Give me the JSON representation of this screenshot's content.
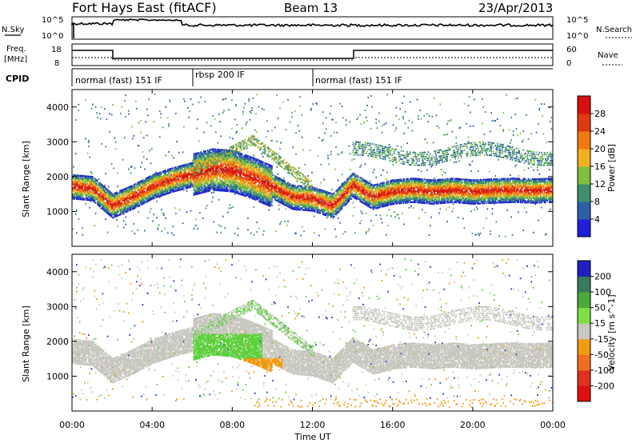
{
  "header": {
    "title": "Fort Hays East (fitACF)",
    "beam": "Beam 13",
    "date": "23/Apr/2013"
  },
  "noise_panel": {
    "left_label": "N.Sky",
    "left_ticks": [
      "10^5",
      "10^0"
    ],
    "right_label": "N.Search",
    "right_ticks": [
      "10^5",
      "10^0"
    ]
  },
  "freq_panel": {
    "left_label_line1": "Freq.",
    "left_label_line2": "[MHz]",
    "left_ticks": [
      "18",
      "8"
    ],
    "right_label": "Nave",
    "right_ticks": [
      "60",
      "0"
    ]
  },
  "cpid": {
    "label": "CPID",
    "segments": [
      {
        "label": "normal (fast) 151 IF",
        "start_hr": 0,
        "end_hr": 6
      },
      {
        "label": "rbsp 200 IF",
        "start_hr": 6,
        "end_hr": 12
      },
      {
        "label": "normal (fast) 151 IF",
        "start_hr": 12,
        "end_hr": 24
      }
    ]
  },
  "chart_data": [
    {
      "type": "heatmap",
      "name": "power",
      "ylabel": "Slant Range [km]",
      "yticks": [
        "1000",
        "2000",
        "3000",
        "4000"
      ],
      "ylim": [
        0,
        4500
      ],
      "xlim": [
        0,
        24
      ],
      "colorbar_label": "Power [dB]",
      "colorbar_ticks": [
        "4",
        "8",
        "12",
        "16",
        "20",
        "24",
        "28"
      ],
      "colorbar_colors": [
        "#1f1fd8",
        "#2f5fa8",
        "#3f8f6f",
        "#7fbf3f",
        "#f0b020",
        "#f07a10",
        "#e03a10",
        "#d81010"
      ],
      "bands": [
        {
          "t": [
            0,
            1,
            2,
            3,
            4,
            5,
            6,
            7,
            8,
            9,
            10,
            11,
            12,
            13,
            14,
            15,
            16,
            17,
            18,
            19,
            20,
            21,
            22,
            23,
            24
          ],
          "r": [
            1700,
            1650,
            1150,
            1400,
            1700,
            1900,
            2050,
            2200,
            2150,
            1950,
            1700,
            1400,
            1350,
            1150,
            1750,
            1400,
            1550,
            1600,
            1550,
            1600,
            1550,
            1580,
            1600,
            1580,
            1600
          ],
          "level": 28
        }
      ]
    },
    {
      "type": "heatmap",
      "name": "velocity",
      "ylabel": "Slant Range [km]",
      "yticks": [
        "1000",
        "2000",
        "3000",
        "4000"
      ],
      "ylim": [
        0,
        4500
      ],
      "xlim": [
        0,
        24
      ],
      "colorbar_label": "Velocity [m s^-1]",
      "colorbar_ticks": [
        "200",
        "100",
        "50",
        "15",
        "-15",
        "-50",
        "-100",
        "-200"
      ],
      "colorbar_colors": [
        "#2020c0",
        "#3a7a5a",
        "#4caa3a",
        "#7fdf3f",
        "#c8c8c0",
        "#f09a10",
        "#f07020",
        "#e03020",
        "#e01010"
      ]
    }
  ],
  "x_axis": {
    "ticks": [
      "00:00",
      "04:00",
      "08:00",
      "12:00",
      "16:00",
      "20:00",
      "00:00"
    ],
    "label": "Time UT"
  }
}
